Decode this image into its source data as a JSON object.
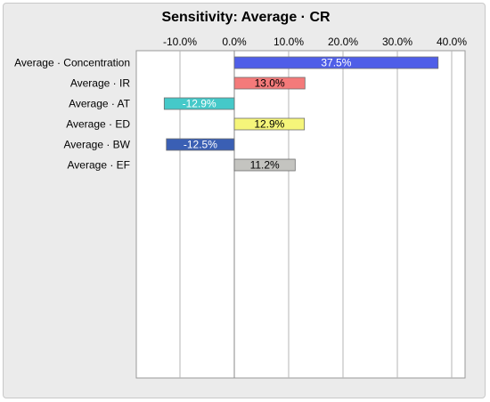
{
  "chart_data": {
    "type": "bar",
    "orientation": "horizontal",
    "title": "Sensitivity: Average · CR",
    "xlim": [
      -18,
      42
    ],
    "x_ticks": [
      -10,
      0,
      10,
      20,
      30,
      40
    ],
    "x_tick_labels": [
      "-10.0%",
      "0.0%",
      "10.0%",
      "20.0%",
      "30.0%",
      "40.0%"
    ],
    "tick_position": "top",
    "grid": true,
    "categories": [
      "Average · Concentration",
      "Average · IR",
      "Average · AT",
      "Average · ED",
      "Average · BW",
      "Average · EF"
    ],
    "values": [
      37.5,
      13.0,
      -12.9,
      12.9,
      -12.5,
      11.2
    ],
    "value_labels": [
      "37.5%",
      "13.0%",
      "-12.9%",
      "12.9%",
      "-12.5%",
      "11.2%"
    ],
    "colors": [
      "#4f5ee8",
      "#f47a7a",
      "#45c9c9",
      "#f5f57a",
      "#3a5fb4",
      "#c4c4c0"
    ],
    "label_colors": [
      "#ffffff",
      "#000000",
      "#ffffff",
      "#000000",
      "#ffffff",
      "#000000"
    ]
  }
}
